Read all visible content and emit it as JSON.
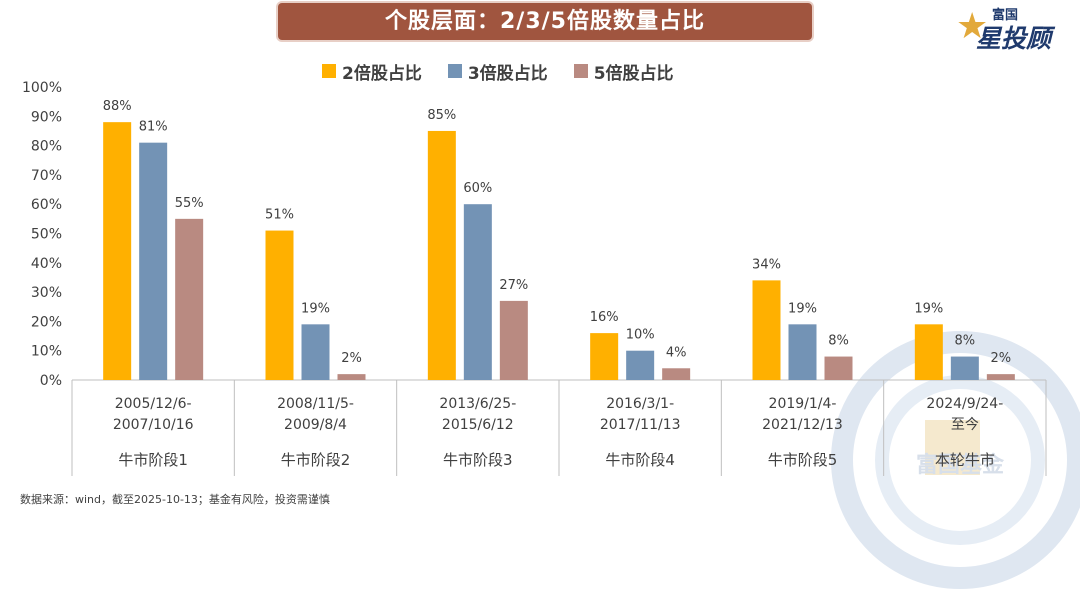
{
  "title": "个股层面：2/3/5倍股数量占比",
  "brand": {
    "small": "富国",
    "big": "星投顾"
  },
  "watermark_text": "富国基金",
  "footnote": "数据来源：wind，截至2025-10-13；基金有风险，投资需谨慎",
  "colors": {
    "title_bg": "#a0553f",
    "series2": "#ffb000",
    "series3": "#7393b5",
    "series5": "#b98a81"
  },
  "chart_data": {
    "type": "bar",
    "categories": [
      {
        "line1": "2005/12/6-",
        "line2": "2007/10/16",
        "phase": "牛市阶段1"
      },
      {
        "line1": "2008/11/5-",
        "line2": "2009/8/4",
        "phase": "牛市阶段2"
      },
      {
        "line1": "2013/6/25-",
        "line2": "2015/6/12",
        "phase": "牛市阶段3"
      },
      {
        "line1": "2016/3/1-",
        "line2": "2017/11/13",
        "phase": "牛市阶段4"
      },
      {
        "line1": "2019/1/4-",
        "line2": "2021/12/13",
        "phase": "牛市阶段5"
      },
      {
        "line1": "2024/9/24-",
        "line2": "至今",
        "phase": "本轮牛市"
      }
    ],
    "series": [
      {
        "name": "2倍股占比",
        "color": "#ffb000",
        "values": [
          88,
          51,
          85,
          16,
          34,
          19
        ],
        "labels": [
          "88%",
          "51%",
          "85%",
          "16%",
          "34%",
          "19%"
        ]
      },
      {
        "name": "3倍股占比",
        "color": "#7393b5",
        "values": [
          81,
          19,
          60,
          10,
          19,
          8
        ],
        "labels": [
          "81%",
          "19%",
          "60%",
          "10%",
          "19%",
          "8%"
        ]
      },
      {
        "name": "5倍股占比",
        "color": "#b98a81",
        "values": [
          55,
          2,
          27,
          4,
          8,
          2
        ],
        "labels": [
          "55%",
          "2%",
          "27%",
          "4%",
          "8%",
          "2%"
        ]
      }
    ],
    "ylim": [
      0,
      100
    ],
    "yticks": [
      "0%",
      "10%",
      "20%",
      "30%",
      "40%",
      "50%",
      "60%",
      "70%",
      "80%",
      "90%",
      "100%"
    ],
    "legend_position": "top",
    "grid": false
  }
}
